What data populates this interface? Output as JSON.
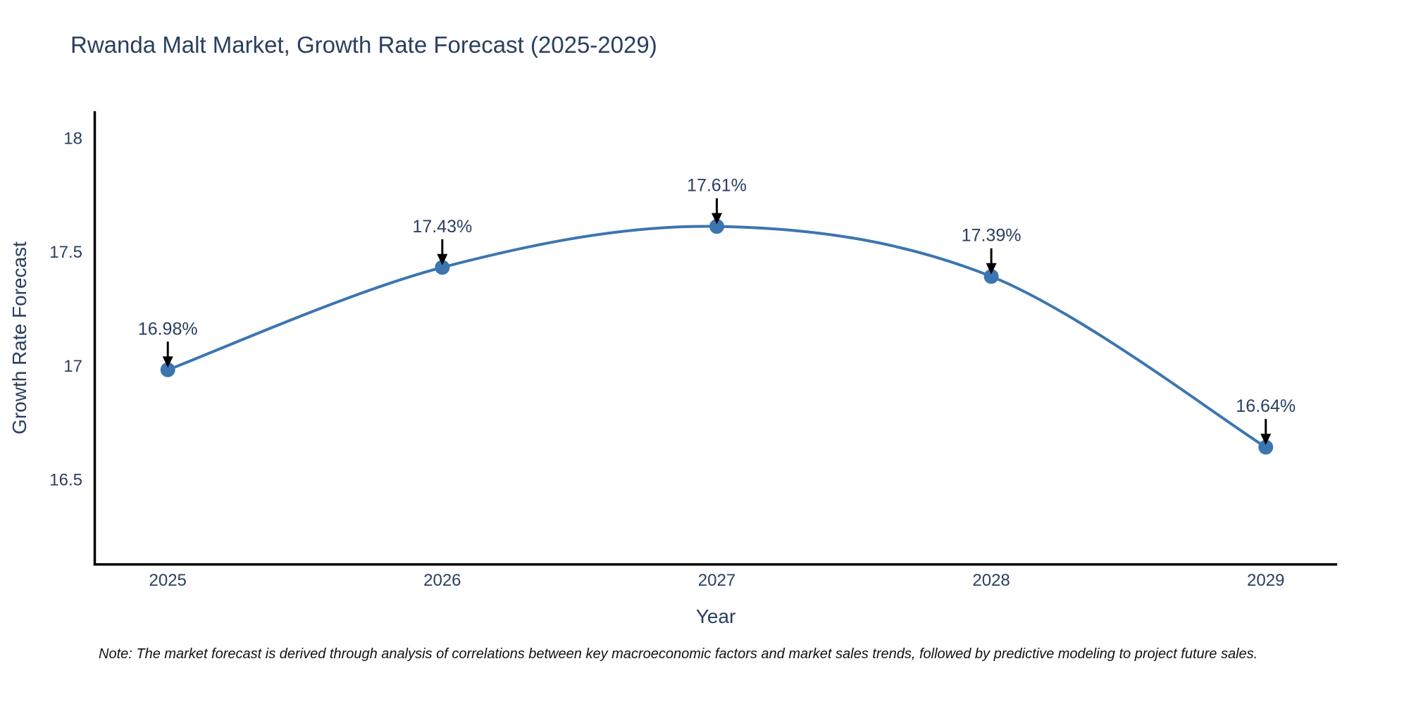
{
  "chart": {
    "title": "Rwanda Malt Market, Growth Rate Forecast (2025-2029)",
    "xlabel": "Year",
    "ylabel": "Growth Rate Forecast",
    "note": "Note: The market forecast is derived through analysis of correlations between key macroeconomic factors and market sales trends, followed by predictive modeling to project future sales."
  },
  "chart_data": {
    "type": "line",
    "title": "Rwanda Malt Market, Growth Rate Forecast (2025-2029)",
    "xlabel": "Year",
    "ylabel": "Growth Rate Forecast",
    "x": [
      2025,
      2026,
      2027,
      2028,
      2029
    ],
    "values": [
      16.98,
      17.43,
      17.61,
      17.39,
      16.64
    ],
    "point_labels": [
      "16.98%",
      "17.43%",
      "17.61%",
      "17.39%",
      "16.64%"
    ],
    "x_tick_labels": [
      "2025",
      "2026",
      "2027",
      "2028",
      "2029"
    ],
    "y_ticks": [
      16.5,
      17,
      17.5,
      18
    ],
    "y_tick_labels": [
      "16.5",
      "17",
      "17.5",
      "18"
    ],
    "xlim": [
      2024.73,
      2029.26
    ],
    "ylim": [
      16.13,
      18.11
    ],
    "grid": false,
    "legend": "none",
    "line_shape": "spline",
    "colors": {
      "line": "#3c76b0",
      "marker": "#3c76b0",
      "arrow": "#000000",
      "axis": "#000000",
      "tick_text": "#2a3f5f",
      "annotation_text": "#2a3f5f"
    }
  }
}
